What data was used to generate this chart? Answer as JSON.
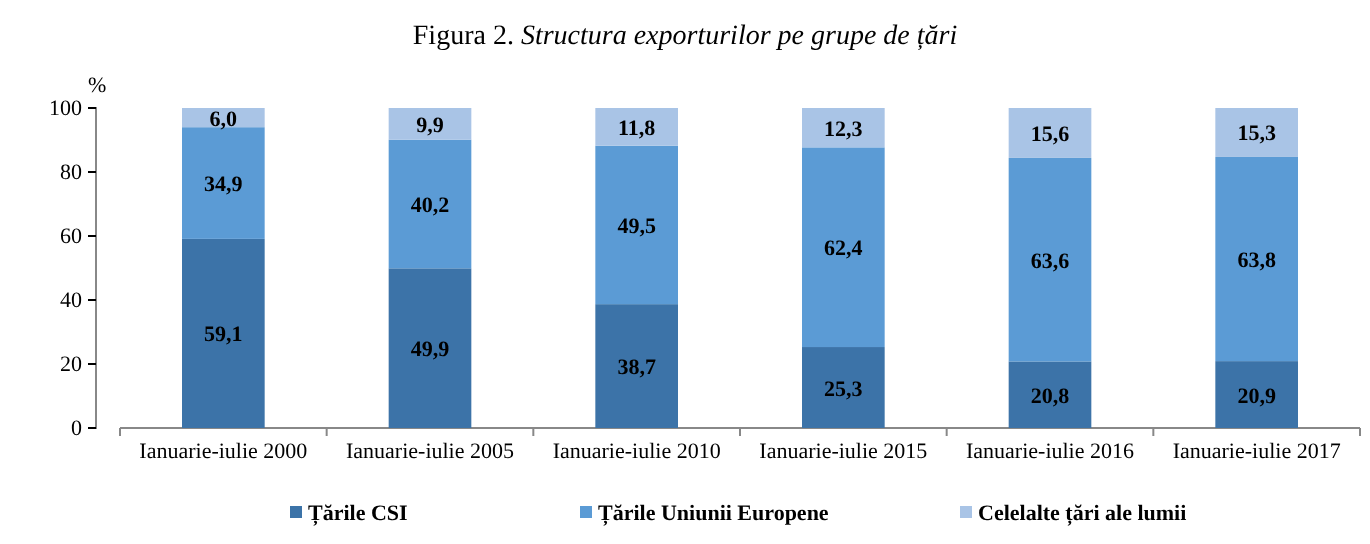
{
  "chart_data": {
    "type": "bar",
    "stacked": true,
    "title": "Figura 2. Structura exporturilor  pe grupe de țări",
    "ylabel": "%",
    "categories": [
      "Ianuarie-iulie 2000",
      "Ianuarie-iulie 2005",
      "Ianuarie-iulie 2010",
      "Ianuarie-iulie 2015",
      "Ianuarie-iulie 2016",
      "Ianuarie-iulie 2017"
    ],
    "series": [
      {
        "name": "Țările CSI",
        "color": "#3c73a8",
        "values": [
          59.1,
          49.9,
          38.7,
          25.3,
          20.8,
          20.9
        ],
        "value_labels": [
          "59,1",
          "49,9",
          "38,7",
          "25,3",
          "20,8",
          "20,9"
        ]
      },
      {
        "name": "Țările Uniunii Europene",
        "color": "#5b9bd5",
        "values": [
          34.9,
          40.2,
          49.5,
          62.4,
          63.6,
          63.8
        ],
        "value_labels": [
          "34,9",
          "40,2",
          "49,5",
          "62,4",
          "63,6",
          "63,8"
        ]
      },
      {
        "name": "Celelalte țări ale lumii",
        "color": "#a9c4e6",
        "values": [
          6.0,
          9.9,
          11.8,
          12.3,
          15.6,
          15.3
        ],
        "value_labels": [
          "6,0",
          "9,9",
          "11,8",
          "12,3",
          "15,6",
          "15,3"
        ]
      }
    ],
    "ylim": [
      0,
      100
    ],
    "yticks": [
      0,
      20,
      40,
      60,
      80,
      100
    ],
    "grid": false,
    "legend": "bottom"
  }
}
